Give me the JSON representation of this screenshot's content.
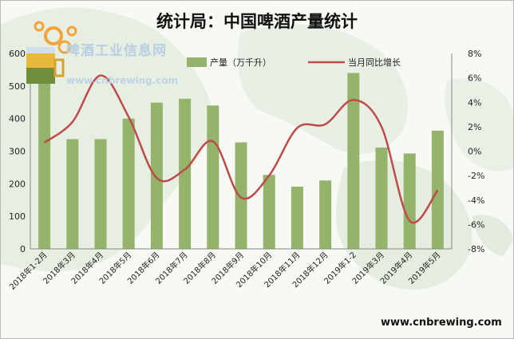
{
  "title": "统计局：中国啤酒产量统计",
  "logo": {
    "name": "啤酒工业信息网",
    "url": "www.cnbrewing.com"
  },
  "footer_url": "www.cnbrewing.com",
  "colors": {
    "bar": "#94b36b",
    "line": "#be4b48"
  },
  "chart_data": {
    "type": "bar",
    "categories": [
      "2018年1-2月",
      "2018年3月",
      "2018年4月",
      "2018年5月",
      "2018年6月",
      "2018年7月",
      "2018年8月",
      "2018年9月",
      "2018年10月",
      "2018年11月",
      "2018年12月",
      "2019年1-2",
      "2019年3月",
      "2019年4月",
      "2019年5月"
    ],
    "series": [
      {
        "name": "产量（万千升）",
        "type": "bar",
        "axis": "left",
        "values": [
          510,
          337,
          337,
          400,
          449,
          461,
          440,
          327,
          227,
          191,
          210,
          540,
          311,
          293,
          363
        ]
      },
      {
        "name": "当月同比增长",
        "type": "line",
        "axis": "right",
        "values": [
          0.7,
          2.4,
          6.2,
          2.8,
          -2.2,
          -1.5,
          0.8,
          -3.8,
          -2.0,
          1.9,
          2.2,
          4.2,
          2.0,
          -5.7,
          -3.2
        ]
      }
    ],
    "y_left": {
      "min": 0,
      "max": 600,
      "ticks": [
        "0",
        "100",
        "200",
        "300",
        "400",
        "500",
        "600"
      ]
    },
    "y_right": {
      "min": -8,
      "max": 8,
      "ticks": [
        "-8%",
        "-6%",
        "-4%",
        "-2%",
        "0%",
        "2%",
        "4%",
        "6%",
        "8%"
      ]
    },
    "legend_position": "top",
    "grid": false
  }
}
